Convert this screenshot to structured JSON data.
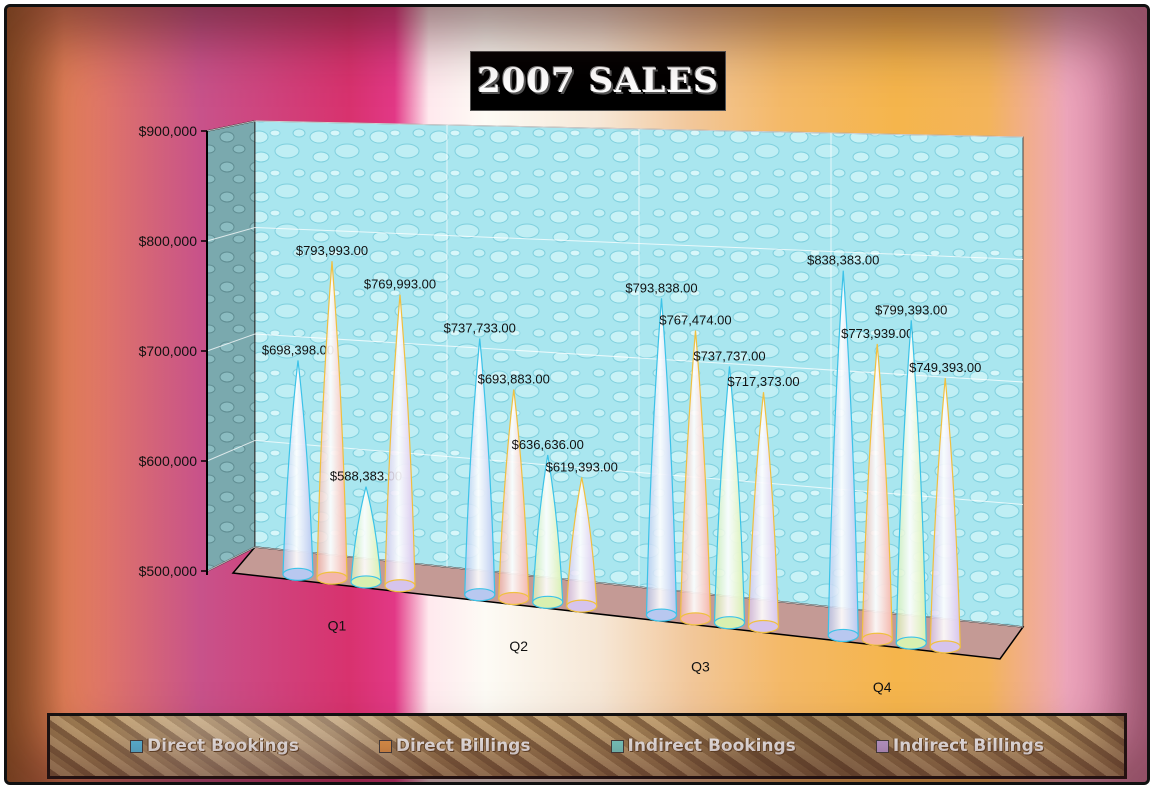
{
  "chart_data": {
    "type": "bar",
    "bar_shape": "cone",
    "title": "2007 SALES",
    "categories": [
      "Q1",
      "Q2",
      "Q3",
      "Q4"
    ],
    "ylim": [
      500000,
      900000
    ],
    "yticks": [
      500000,
      600000,
      700000,
      800000,
      900000
    ],
    "ytick_labels": [
      "$500,000",
      "$600,000",
      "$700,000",
      "$800,000",
      "$900,000"
    ],
    "grid": true,
    "legend_position": "bottom",
    "series": [
      {
        "name": "Direct Bookings",
        "color": "#b8c8f0",
        "edge": "#3cc3e8",
        "values": [
          698398,
          737733,
          793838,
          838383
        ],
        "labels": [
          "$698,398.00",
          "$737,733.00",
          "$793,838.00",
          "$838,383.00"
        ]
      },
      {
        "name": "Direct Billings",
        "color": "#f4b6ac",
        "edge": "#f0c040",
        "values": [
          793993,
          693883,
          767474,
          773939
        ],
        "labels": [
          "$793,993.00",
          "$693,883.00",
          "$767,474.00",
          "$773,939.00"
        ]
      },
      {
        "name": "Indirect Bookings",
        "color": "#d8f0b0",
        "edge": "#3cc3e8",
        "values": [
          588383,
          636636,
          737737,
          799393
        ],
        "labels": [
          "$588,383.00",
          "$636,636.00",
          "$737,737.00",
          "$799,393.00"
        ]
      },
      {
        "name": "Indirect Billings",
        "color": "#d6c4ec",
        "edge": "#f0c040",
        "values": [
          769993,
          619393,
          717373,
          749393
        ],
        "labels": [
          "$769,993.00",
          "$619,393.00",
          "$717,373.00",
          "$749,393.00"
        ]
      }
    ]
  }
}
